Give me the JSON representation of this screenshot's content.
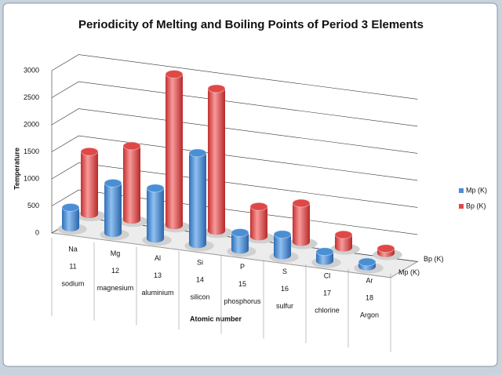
{
  "chart_data": {
    "type": "bar3d",
    "title": "Periodicity of Melting and Boiling Points of Period 3 Elements",
    "y_label": "Temperature",
    "x_label": "Atomic number",
    "categories": [
      [
        "Na",
        "11",
        "sodium"
      ],
      [
        "Mg",
        "12",
        "magnesium"
      ],
      [
        "Al",
        "13",
        "aluminium"
      ],
      [
        "Si",
        "14",
        "silicon"
      ],
      [
        "P",
        "15",
        "phosphorus"
      ],
      [
        "S",
        "16",
        "sulfur"
      ],
      [
        "Cl",
        "17",
        "chlorine"
      ],
      [
        "Ar",
        "18",
        "Argon"
      ]
    ],
    "series": [
      {
        "name": "Mp (K)",
        "color": "#4a8fd6",
        "values": [
          371,
          923,
          933,
          1687,
          317,
          388,
          172,
          84
        ]
      },
      {
        "name": "Bp (K)",
        "color": "#e04848",
        "values": [
          1156,
          1363,
          2792,
          2628,
          553,
          718,
          239,
          87
        ]
      }
    ],
    "ylim": [
      0,
      3000
    ],
    "yticks": [
      0,
      500,
      1000,
      1500,
      2000,
      2500,
      3000
    ],
    "grid": true,
    "legend": "right"
  }
}
